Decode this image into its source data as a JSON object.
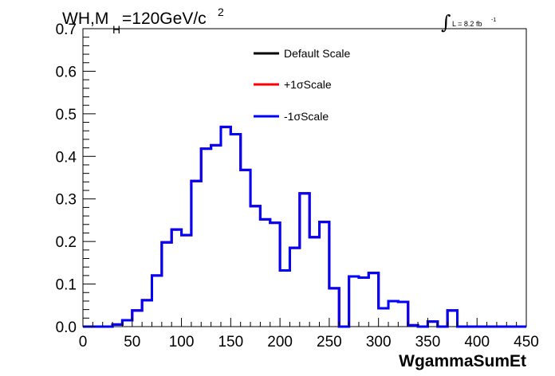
{
  "title": {
    "main": "WH,M",
    "subscript": "H",
    "rest": "=120GeV/c",
    "superscript": "2"
  },
  "luminosity": {
    "integral_sign": "∫",
    "text": "L = 8.2 fb",
    "superscript": "-1"
  },
  "colors": {
    "default": "#000000",
    "plus": "#ff0000",
    "minus": "#0000ff",
    "axis": "#000000"
  },
  "chart_data": {
    "type": "line",
    "style": "step-histogram",
    "xlabel": "WgammaSumEt",
    "ylabel": "",
    "xlim": [
      0,
      450
    ],
    "ylim": [
      0,
      0.7
    ],
    "x_ticks": [
      "0",
      "50",
      "100",
      "150",
      "200",
      "250",
      "300",
      "350",
      "400",
      "450"
    ],
    "y_ticks": [
      "0.0",
      "0.1",
      "0.2",
      "0.3",
      "0.4",
      "0.5",
      "0.6",
      "0.7"
    ],
    "bin_width": 10,
    "bin_edges": [
      0,
      10,
      20,
      30,
      40,
      50,
      60,
      70,
      80,
      90,
      100,
      110,
      120,
      130,
      140,
      150,
      160,
      170,
      180,
      190,
      200,
      210,
      220,
      230,
      240,
      250,
      260,
      270,
      280,
      290,
      300,
      310,
      320,
      330,
      340,
      350,
      360,
      370,
      380,
      390,
      400,
      410,
      420,
      430,
      440,
      450
    ],
    "legend": {
      "placement": "top-center",
      "entries": [
        "Default Scale",
        "+1σScale",
        "-1σScale"
      ]
    },
    "series": [
      {
        "name": "Default Scale",
        "color": "#000000",
        "values": [
          0,
          0,
          0,
          0.005,
          0.015,
          0.038,
          0.062,
          0.12,
          0.198,
          0.228,
          0.215,
          0.342,
          0.418,
          0.426,
          0.469,
          0.452,
          0.368,
          0.283,
          0.252,
          0.244,
          0.132,
          0.185,
          0.313,
          0.21,
          0.246,
          0.09,
          0,
          0.118,
          0.115,
          0.126,
          0.043,
          0.06,
          0.058,
          0.003,
          0,
          0.012,
          0,
          0.038,
          0,
          0,
          0,
          0,
          0,
          0,
          0
        ]
      },
      {
        "name": "+1σScale",
        "color": "#ff0000",
        "values": [
          0,
          0,
          0,
          0.005,
          0.015,
          0.038,
          0.062,
          0.12,
          0.198,
          0.228,
          0.215,
          0.342,
          0.418,
          0.426,
          0.469,
          0.452,
          0.368,
          0.283,
          0.252,
          0.244,
          0.132,
          0.185,
          0.313,
          0.21,
          0.246,
          0.09,
          0,
          0.118,
          0.115,
          0.126,
          0.043,
          0.06,
          0.058,
          0.003,
          0,
          0.012,
          0,
          0.038,
          0,
          0,
          0,
          0,
          0,
          0,
          0
        ]
      },
      {
        "name": "-1σScale",
        "color": "#0000ff",
        "values": [
          0,
          0,
          0,
          0.005,
          0.015,
          0.038,
          0.062,
          0.12,
          0.198,
          0.228,
          0.215,
          0.342,
          0.418,
          0.426,
          0.469,
          0.452,
          0.368,
          0.283,
          0.252,
          0.244,
          0.132,
          0.185,
          0.313,
          0.21,
          0.246,
          0.09,
          0,
          0.118,
          0.115,
          0.126,
          0.043,
          0.06,
          0.058,
          0.003,
          0,
          0.012,
          0,
          0.038,
          0,
          0,
          0,
          0,
          0,
          0,
          0
        ]
      }
    ]
  }
}
